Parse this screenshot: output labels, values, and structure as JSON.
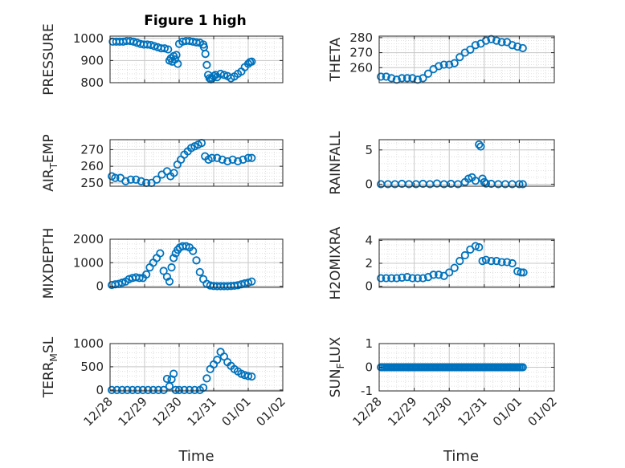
{
  "figure": {
    "title": "Figure 1 high"
  },
  "chart_data": [
    {
      "type": "scatter",
      "ylabel": "PRESSURE",
      "xlabel": "",
      "title": "Figure 1 high",
      "ylim": [
        800,
        1010
      ],
      "yticks": [
        800,
        900,
        1000
      ],
      "xlim": [
        0,
        5
      ],
      "xticks": [
        "12/28",
        "12/29",
        "12/30",
        "12/31",
        "01/01",
        "01/02"
      ],
      "series": [
        {
          "x": [
            0.08,
            0.18,
            0.28,
            0.38,
            0.48,
            0.58,
            0.68,
            0.78,
            0.88,
            0.98,
            1.08,
            1.18,
            1.28,
            1.38,
            1.48,
            1.58,
            1.68,
            1.72,
            1.76,
            1.8,
            1.84,
            1.88,
            1.92,
            1.96,
            2.0,
            2.1,
            2.2,
            2.3,
            2.4,
            2.5,
            2.6,
            2.7,
            2.72,
            2.76,
            2.8,
            2.84,
            2.88,
            2.92,
            2.96,
            3.0,
            3.05,
            3.1,
            3.2,
            3.3,
            3.4,
            3.5,
            3.6,
            3.7,
            3.8,
            3.9,
            4.0,
            4.05,
            4.1
          ],
          "y": [
            985,
            985,
            985,
            985,
            988,
            988,
            985,
            980,
            975,
            972,
            972,
            970,
            965,
            960,
            955,
            955,
            950,
            900,
            910,
            895,
            920,
            905,
            925,
            885,
            975,
            985,
            988,
            988,
            985,
            982,
            980,
            972,
            960,
            930,
            880,
            835,
            820,
            815,
            820,
            830,
            835,
            825,
            840,
            835,
            830,
            820,
            828,
            840,
            850,
            870,
            885,
            893,
            895
          ]
        }
      ]
    },
    {
      "type": "scatter",
      "ylabel": "THETA",
      "xlabel": "",
      "ylim": [
        250,
        281
      ],
      "yticks": [
        260,
        270,
        280
      ],
      "xlim": [
        0,
        5
      ],
      "xticks": [
        "12/28",
        "12/29",
        "12/30",
        "12/31",
        "01/01",
        "01/02"
      ],
      "series": [
        {
          "x": [
            0.05,
            0.2,
            0.35,
            0.5,
            0.65,
            0.8,
            0.95,
            1.1,
            1.25,
            1.4,
            1.55,
            1.7,
            1.85,
            2.0,
            2.15,
            2.3,
            2.45,
            2.6,
            2.75,
            2.9,
            3.05,
            3.2,
            3.35,
            3.5,
            3.65,
            3.8,
            3.95,
            4.1
          ],
          "y": [
            254,
            254,
            253,
            252,
            253,
            253,
            253,
            252,
            253,
            256,
            259,
            261,
            262,
            262,
            263,
            267,
            270,
            272,
            275,
            276,
            278,
            279,
            278,
            277,
            277,
            275,
            274,
            273
          ]
        }
      ]
    },
    {
      "type": "scatter",
      "ylabel": "AIR_TEMP",
      "xlabel": "",
      "ylim": [
        248,
        276
      ],
      "yticks": [
        250,
        260,
        270
      ],
      "xlim": [
        0,
        5
      ],
      "xticks": [
        "12/28",
        "12/29",
        "12/30",
        "12/31",
        "01/01",
        "01/02"
      ],
      "series": [
        {
          "x": [
            0.05,
            0.15,
            0.3,
            0.45,
            0.6,
            0.75,
            0.9,
            1.05,
            1.2,
            1.35,
            1.5,
            1.65,
            1.75,
            1.85,
            1.95,
            2.05,
            2.15,
            2.25,
            2.35,
            2.45,
            2.55,
            2.65,
            2.75,
            2.85,
            2.95,
            3.1,
            3.25,
            3.4,
            3.55,
            3.7,
            3.85,
            4.0,
            4.1
          ],
          "y": [
            254,
            253,
            253,
            251,
            252,
            252,
            251,
            250,
            250,
            252,
            255,
            257,
            254,
            256,
            261,
            264,
            267,
            269,
            271,
            272,
            273,
            274,
            266,
            264,
            265,
            265,
            264,
            263,
            264,
            263,
            264,
            265,
            265
          ]
        }
      ]
    },
    {
      "type": "scatter",
      "ylabel": "RAINFALL",
      "xlabel": "",
      "ylim": [
        -0.3,
        6.5
      ],
      "yticks": [
        0,
        5
      ],
      "xlim": [
        0,
        5
      ],
      "xticks": [
        "12/28",
        "12/29",
        "12/30",
        "12/31",
        "01/01",
        "01/02"
      ],
      "series": [
        {
          "x": [
            0.05,
            0.25,
            0.45,
            0.65,
            0.85,
            1.05,
            1.25,
            1.45,
            1.65,
            1.85,
            2.05,
            2.25,
            2.45,
            2.55,
            2.65,
            2.75,
            2.85,
            2.9,
            2.95,
            3.0,
            3.05,
            3.2,
            3.4,
            3.6,
            3.8,
            4.0,
            4.1
          ],
          "y": [
            0,
            0,
            0,
            0.05,
            0,
            0,
            0.05,
            0,
            0.1,
            0,
            0.05,
            0,
            0.3,
            0.8,
            1.0,
            0.5,
            5.8,
            5.5,
            0.8,
            0.3,
            0.1,
            0.05,
            0,
            0,
            0,
            0,
            0
          ]
        }
      ]
    },
    {
      "type": "scatter",
      "ylabel": "MIXDEPTH",
      "xlabel": "",
      "ylim": [
        -50,
        2000
      ],
      "yticks": [
        0,
        1000,
        2000
      ],
      "xlim": [
        0,
        5
      ],
      "xticks": [
        "12/28",
        "12/29",
        "12/30",
        "12/31",
        "01/01",
        "01/02"
      ],
      "series": [
        {
          "x": [
            0.05,
            0.15,
            0.25,
            0.35,
            0.45,
            0.55,
            0.65,
            0.75,
            0.85,
            0.95,
            1.05,
            1.15,
            1.25,
            1.35,
            1.45,
            1.55,
            1.65,
            1.72,
            1.78,
            1.84,
            1.9,
            1.96,
            2.02,
            2.1,
            2.2,
            2.3,
            2.4,
            2.5,
            2.6,
            2.7,
            2.8,
            2.9,
            3.0,
            3.1,
            3.2,
            3.3,
            3.4,
            3.5,
            3.6,
            3.7,
            3.8,
            3.9,
            4.0,
            4.1
          ],
          "y": [
            50,
            80,
            100,
            150,
            200,
            300,
            350,
            380,
            350,
            350,
            500,
            800,
            1000,
            1200,
            1400,
            650,
            400,
            200,
            800,
            1200,
            1400,
            1550,
            1650,
            1700,
            1700,
            1650,
            1500,
            1100,
            600,
            300,
            100,
            30,
            10,
            0,
            0,
            0,
            0,
            10,
            20,
            40,
            80,
            120,
            150,
            200
          ]
        }
      ]
    },
    {
      "type": "scatter",
      "ylabel": "H2OMIXRA",
      "xlabel": "",
      "ylim": [
        -0.1,
        4.1
      ],
      "yticks": [
        0,
        2,
        4
      ],
      "xlim": [
        0,
        5
      ],
      "xticks": [
        "12/28",
        "12/29",
        "12/30",
        "12/31",
        "01/01",
        "01/02"
      ],
      "series": [
        {
          "x": [
            0.05,
            0.2,
            0.35,
            0.5,
            0.65,
            0.8,
            0.95,
            1.1,
            1.25,
            1.4,
            1.55,
            1.7,
            1.85,
            2.0,
            2.15,
            2.3,
            2.45,
            2.6,
            2.75,
            2.85,
            2.95,
            3.05,
            3.2,
            3.35,
            3.5,
            3.65,
            3.8,
            3.95,
            4.05,
            4.12
          ],
          "y": [
            0.7,
            0.7,
            0.7,
            0.7,
            0.75,
            0.8,
            0.7,
            0.7,
            0.7,
            0.8,
            1.0,
            1.0,
            0.9,
            1.2,
            1.6,
            2.2,
            2.7,
            3.2,
            3.5,
            3.4,
            2.2,
            2.3,
            2.2,
            2.2,
            2.1,
            2.1,
            2.0,
            1.3,
            1.2,
            1.2
          ]
        }
      ]
    },
    {
      "type": "scatter",
      "ylabel": "TERR_MSL",
      "xlabel": "Time",
      "ylim": [
        -20,
        1000
      ],
      "yticks": [
        0,
        500,
        1000
      ],
      "xlim": [
        0,
        5
      ],
      "xticks": [
        "12/28",
        "12/29",
        "12/30",
        "12/31",
        "01/01",
        "01/02"
      ],
      "series": [
        {
          "x": [
            0.05,
            0.2,
            0.35,
            0.5,
            0.65,
            0.8,
            0.95,
            1.1,
            1.25,
            1.4,
            1.55,
            1.65,
            1.72,
            1.78,
            1.84,
            1.9,
            2.0,
            2.15,
            2.3,
            2.45,
            2.6,
            2.7,
            2.8,
            2.9,
            3.0,
            3.1,
            3.2,
            3.3,
            3.4,
            3.5,
            3.6,
            3.7,
            3.8,
            3.9,
            4.0,
            4.1
          ],
          "y": [
            0,
            0,
            0,
            0,
            0,
            0,
            0,
            0,
            0,
            0,
            0,
            240,
            80,
            230,
            350,
            0,
            0,
            0,
            0,
            0,
            0,
            50,
            250,
            450,
            550,
            650,
            820,
            720,
            600,
            520,
            450,
            400,
            350,
            320,
            300,
            290
          ]
        }
      ]
    },
    {
      "type": "scatter",
      "ylabel": "SUN_FLUX",
      "xlabel": "Time",
      "ylim": [
        -1,
        1
      ],
      "yticks": [
        -1,
        0,
        1
      ],
      "xlim": [
        0,
        5
      ],
      "xticks": [
        "12/28",
        "12/29",
        "12/30",
        "12/31",
        "01/01",
        "01/02"
      ],
      "series": [
        {
          "x": "range 0.05..4.1 step 0.05",
          "y": 0
        }
      ]
    }
  ],
  "colors": {
    "marker": "#0072BD",
    "axis": "#262626",
    "grid": "#d9d9d9"
  }
}
